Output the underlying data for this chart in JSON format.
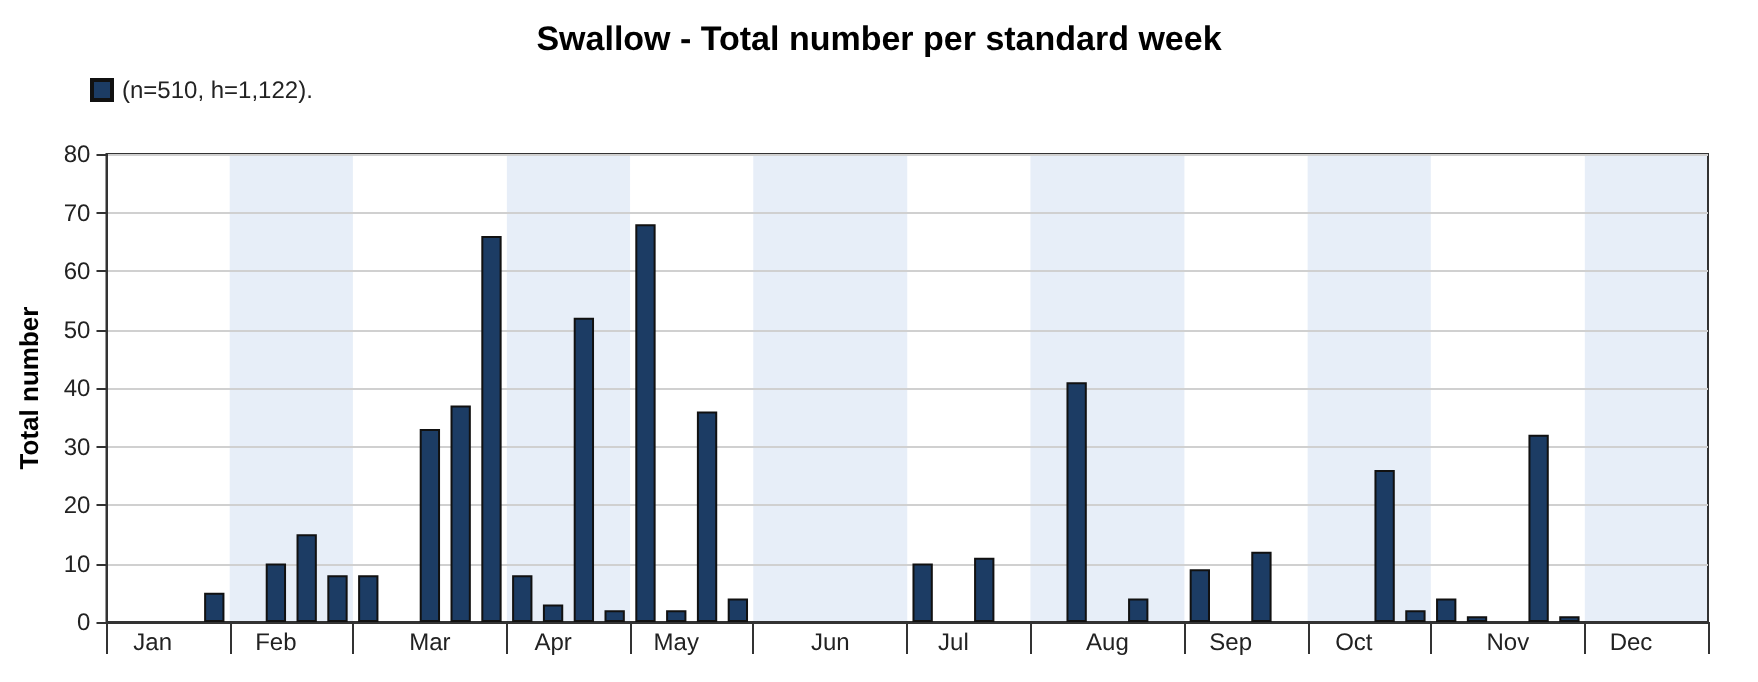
{
  "chart_data": {
    "type": "bar",
    "title": "Swallow - Total number per standard week",
    "ylabel": "Total number",
    "categories": [
      null,
      "Jan",
      null,
      null,
      null,
      "Feb",
      null,
      null,
      null,
      null,
      "Mar",
      null,
      null,
      null,
      "Apr",
      null,
      null,
      null,
      "May",
      null,
      null,
      null,
      null,
      "Jun",
      null,
      null,
      null,
      "Jul",
      null,
      null,
      null,
      null,
      "Aug",
      null,
      null,
      null,
      "Sep",
      null,
      null,
      null,
      "Oct",
      null,
      null,
      null,
      null,
      "Nov",
      null,
      null,
      null,
      "Dec",
      null,
      null
    ],
    "series": [
      {
        "name": "(n=510, h=1,122).",
        "color": "#1c3c64",
        "values": [
          null,
          null,
          null,
          5,
          null,
          10,
          15,
          8,
          8,
          null,
          33,
          37,
          66,
          8,
          3,
          52,
          2,
          68,
          2,
          36,
          4,
          null,
          null,
          null,
          null,
          null,
          10,
          null,
          11,
          null,
          null,
          41,
          null,
          4,
          null,
          9,
          null,
          12,
          null,
          null,
          null,
          26,
          2,
          4,
          1,
          null,
          32,
          1,
          null,
          null,
          null,
          null
        ]
      }
    ],
    "ylim": [
      0,
      80
    ],
    "yticks": [
      0,
      10,
      20,
      30,
      40,
      50,
      60,
      70,
      80
    ],
    "grid": "y",
    "legend": "top left"
  }
}
